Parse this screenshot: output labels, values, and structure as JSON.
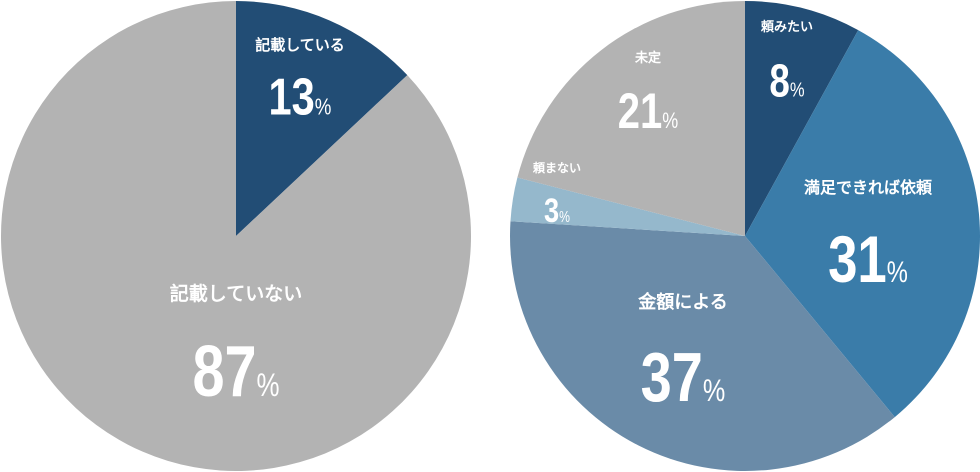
{
  "chart_data": [
    {
      "type": "pie",
      "categories": [
        "記載している",
        "記載していない"
      ],
      "values": [
        13,
        87
      ],
      "unit": "%",
      "colors": [
        "#224d75",
        "#b3b3b3"
      ]
    },
    {
      "type": "pie",
      "categories": [
        "頼みたい",
        "満足できれば依頼",
        "金額による",
        "頼まない",
        "未定"
      ],
      "values": [
        8,
        31,
        37,
        3,
        21
      ],
      "unit": "%",
      "colors": [
        "#224d75",
        "#3a7ca9",
        "#6a8ba8",
        "#95b8cc",
        "#b3b3b3"
      ]
    }
  ]
}
